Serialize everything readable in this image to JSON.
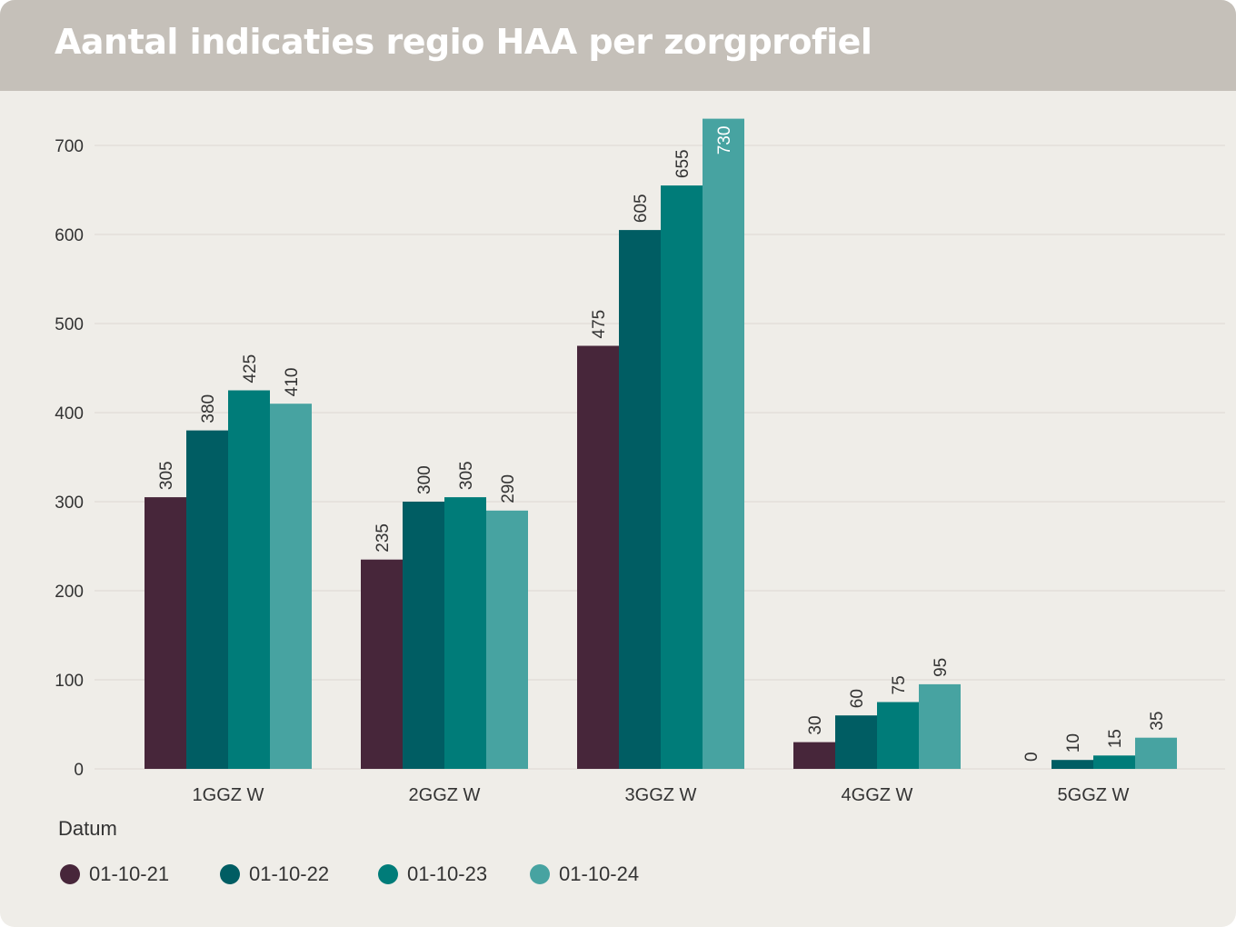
{
  "chart_data": {
    "type": "bar",
    "title": "Aantal indicaties regio HAA per zorgprofiel",
    "xlabel": "",
    "ylabel": "",
    "legend_title": "Datum",
    "legend_position": "bottom-left",
    "grid": true,
    "ylim": [
      0,
      730
    ],
    "yticks": [
      0,
      100,
      200,
      300,
      400,
      500,
      600,
      700
    ],
    "categories": [
      "1GGZ W",
      "2GGZ W",
      "3GGZ W",
      "4GGZ W",
      "5GGZ W"
    ],
    "series": [
      {
        "name": "01-10-21",
        "color": "#47263a",
        "values": [
          305,
          235,
          475,
          30,
          0
        ]
      },
      {
        "name": "01-10-22",
        "color": "#005d63",
        "values": [
          380,
          300,
          605,
          60,
          10
        ]
      },
      {
        "name": "01-10-23",
        "color": "#007c79",
        "values": [
          425,
          305,
          655,
          75,
          15
        ]
      },
      {
        "name": "01-10-24",
        "color": "#47a3a1",
        "values": [
          410,
          290,
          730,
          95,
          35
        ]
      }
    ]
  },
  "colors": {
    "background": "#efede8",
    "header": "#c5c0b9",
    "title_text": "#ffffff",
    "gridline": "#dcd8d2",
    "text": "#333333"
  }
}
